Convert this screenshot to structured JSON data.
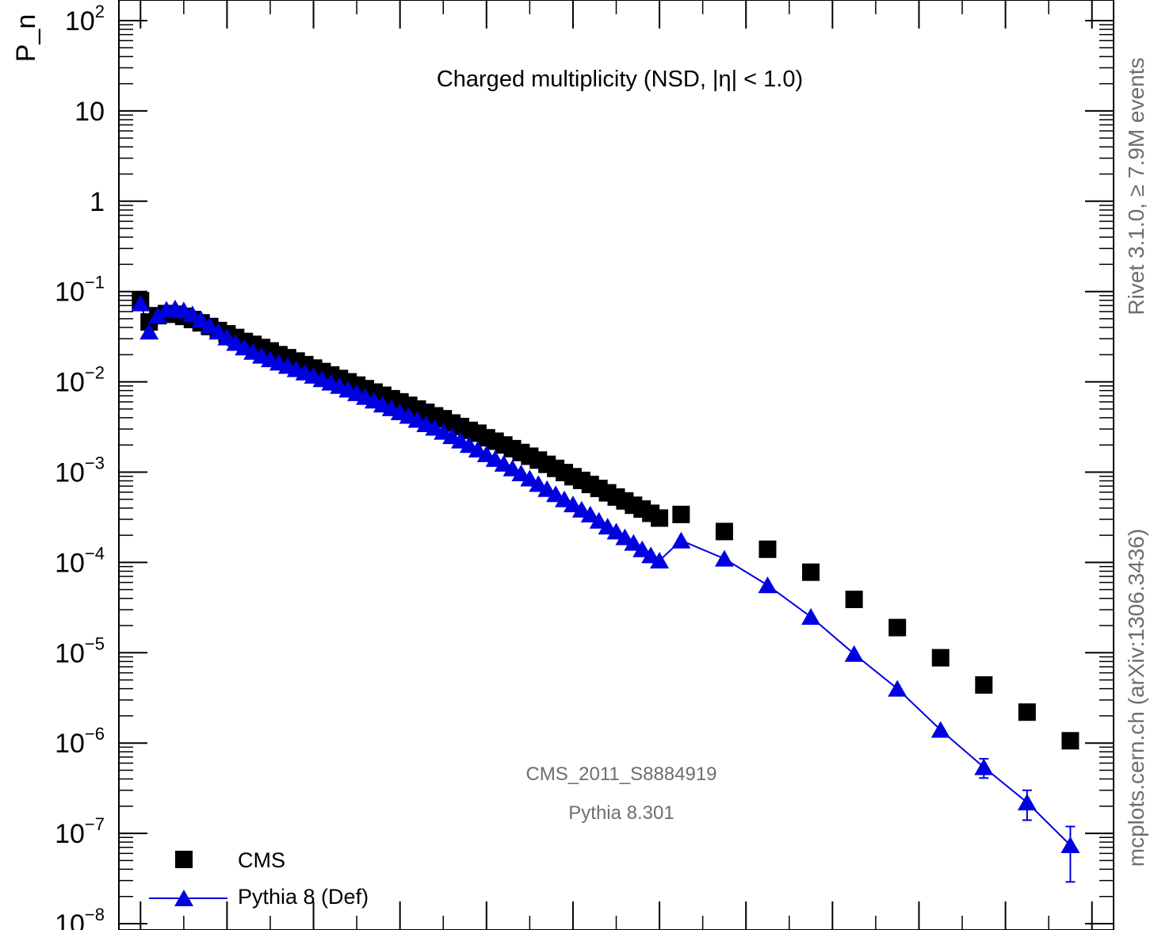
{
  "chart_data": {
    "type": "scatter",
    "title": "Charged multiplicity (NSD, |η| < 1.0)",
    "ylabel": "P_n",
    "ylog": true,
    "ylim": [
      1e-08,
      100
    ],
    "xlim": [
      -2.5,
      112.5
    ],
    "y_tick_labels": [
      {
        "value": 100,
        "base": "10",
        "exp": "2"
      },
      {
        "value": 10,
        "base": "10",
        "exp": ""
      },
      {
        "value": 1,
        "base": "1",
        "exp": ""
      },
      {
        "value": 0.1,
        "base": "10",
        "exp": "−1"
      },
      {
        "value": 0.01,
        "base": "10",
        "exp": "−2"
      },
      {
        "value": 0.001,
        "base": "10",
        "exp": "−3"
      },
      {
        "value": 0.0001,
        "base": "10",
        "exp": "−4"
      },
      {
        "value": 1e-05,
        "base": "10",
        "exp": "−5"
      },
      {
        "value": 1e-06,
        "base": "10",
        "exp": "−6"
      },
      {
        "value": 1e-07,
        "base": "10",
        "exp": "−7"
      },
      {
        "value": 1e-08,
        "base": "10",
        "exp": "−8"
      }
    ],
    "x_major_ticks": [
      0,
      10,
      20,
      30,
      40,
      50,
      60,
      70,
      80,
      90,
      100,
      110
    ],
    "series": [
      {
        "name": "CMS",
        "marker": "square",
        "color": "#000000",
        "x": [
          0,
          1,
          2,
          3,
          4,
          5,
          6,
          7,
          8,
          9,
          10,
          11,
          12,
          13,
          14,
          15,
          16,
          17,
          18,
          19,
          20,
          21,
          22,
          23,
          24,
          25,
          26,
          27,
          28,
          29,
          30,
          31,
          32,
          33,
          34,
          35,
          36,
          37,
          38,
          39,
          40,
          41,
          42,
          43,
          44,
          45,
          46,
          47,
          48,
          49,
          50,
          51,
          52,
          53,
          54,
          55,
          56,
          57,
          58,
          59,
          60,
          62.5,
          67.5,
          72.5,
          77.5,
          82.5,
          87.5,
          92.5,
          97.5,
          102.5,
          107.5
        ],
        "y": [
          0.079,
          0.046,
          0.054,
          0.057,
          0.056,
          0.053,
          0.049,
          0.045,
          0.041,
          0.037,
          0.034,
          0.031,
          0.028,
          0.026,
          0.024,
          0.022,
          0.02,
          0.0185,
          0.017,
          0.0155,
          0.0142,
          0.013,
          0.0119,
          0.0109,
          0.01,
          0.0092,
          0.0084,
          0.0077,
          0.0071,
          0.0065,
          0.006,
          0.0055,
          0.005,
          0.0046,
          0.0042,
          0.0039,
          0.0035,
          0.0032,
          0.0029,
          0.0027,
          0.0024,
          0.0022,
          0.002,
          0.00182,
          0.00165,
          0.0015,
          0.00136,
          0.00122,
          0.0011,
          0.00099,
          0.00089,
          0.00081,
          0.00073,
          0.00066,
          0.00059,
          0.00053,
          0.00048,
          0.00043,
          0.00039,
          0.00035,
          0.00031,
          0.00034,
          0.00022,
          0.00014,
          7.8e-05,
          3.9e-05,
          1.9e-05,
          8.8e-06,
          4.4e-06,
          2.2e-06,
          1.06e-06
        ]
      },
      {
        "name": "Pythia 8 (Def)",
        "marker": "triangle",
        "color": "#0000e0",
        "x": [
          0,
          1,
          2,
          3,
          4,
          5,
          6,
          7,
          8,
          9,
          10,
          11,
          12,
          13,
          14,
          15,
          16,
          17,
          18,
          19,
          20,
          21,
          22,
          23,
          24,
          25,
          26,
          27,
          28,
          29,
          30,
          31,
          32,
          33,
          34,
          35,
          36,
          37,
          38,
          39,
          40,
          41,
          42,
          43,
          44,
          45,
          46,
          47,
          48,
          49,
          50,
          51,
          52,
          53,
          54,
          55,
          56,
          57,
          58,
          59,
          60,
          62.5,
          67.5,
          72.5,
          77.5,
          82.5,
          87.5,
          92.5,
          97.5,
          102.5,
          107.5
        ],
        "y": [
          0.074,
          0.036,
          0.054,
          0.063,
          0.065,
          0.062,
          0.056,
          0.049,
          0.042,
          0.036,
          0.031,
          0.027,
          0.024,
          0.0215,
          0.0195,
          0.0178,
          0.0163,
          0.015,
          0.0138,
          0.0127,
          0.0117,
          0.0107,
          0.0098,
          0.009,
          0.0082,
          0.0075,
          0.0068,
          0.0062,
          0.0056,
          0.0051,
          0.0046,
          0.0042,
          0.0038,
          0.0034,
          0.0031,
          0.0028,
          0.0025,
          0.00224,
          0.002,
          0.00178,
          0.00158,
          0.0014,
          0.00124,
          0.0011,
          0.00097,
          0.00085,
          0.00074,
          0.00065,
          0.00057,
          0.0005,
          0.00044,
          0.000385,
          0.00034,
          0.00029,
          0.00025,
          0.00022,
          0.00019,
          0.000165,
          0.00014,
          0.00012,
          0.000105,
          0.000175,
          0.00011,
          5.6e-05,
          2.5e-05,
          9.7e-06,
          4e-06,
          1.4e-06,
          5.4e-07,
          2.2e-07,
          7.4e-08
        ],
        "yerr": [
          0,
          0,
          0,
          0,
          0,
          0,
          0,
          0,
          0,
          0,
          0,
          0,
          0,
          0,
          0,
          0,
          0,
          0,
          0,
          0,
          0,
          0,
          0,
          0,
          0,
          0,
          0,
          0,
          0,
          0,
          0,
          0,
          0,
          0,
          0,
          0,
          0,
          0,
          0,
          0,
          0,
          0,
          0,
          0,
          0,
          0,
          0,
          0,
          0,
          0,
          0,
          0,
          0,
          0,
          0,
          0,
          0,
          0,
          0,
          0,
          0,
          0,
          0,
          0,
          0,
          0,
          0,
          0,
          1.3e-07,
          8e-08,
          4.5e-08
        ]
      }
    ],
    "legend": {
      "placement": "bottom-left"
    },
    "annotations": {
      "analysis": "CMS_2011_S8884919",
      "generator": "Pythia 8.301",
      "right_top": "Rivet 3.1.0, ≥ 7.9M events",
      "right_bottom": "mcplots.cern.ch (arXiv:1306.3436)"
    }
  }
}
